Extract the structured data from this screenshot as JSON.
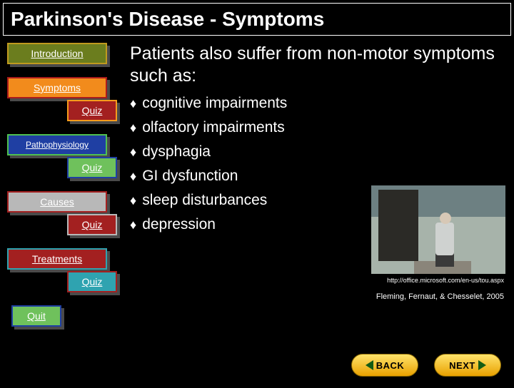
{
  "title": "Parkinson's Disease - Symptoms",
  "lead_text": "Patients also suffer from non-motor symptoms such as:",
  "bullets": [
    "cognitive impairments",
    "olfactory impairments",
    "dysphagia",
    "GI dysfunction",
    "sleep disturbances",
    "depression"
  ],
  "nav": {
    "introduction": {
      "label": "Introduction",
      "bg": "#6b7d1e",
      "border": "#c09a1e"
    },
    "symptoms": {
      "label": "Symptoms",
      "bg": "#f28b1c",
      "border": "#ab1b1b"
    },
    "quiz1": {
      "label": "Quiz",
      "bg": "#a32020",
      "border": "#f59b1c"
    },
    "patho": {
      "label": "Pathophysiology",
      "bg": "#1f3fa3",
      "border": "#50c050"
    },
    "quiz2": {
      "label": "Quiz",
      "bg": "#6fc15c",
      "border": "#1f3fa3"
    },
    "causes": {
      "label": "Causes",
      "bg": "#b8b8b8",
      "border": "#a32020"
    },
    "quiz3": {
      "label": "Quiz",
      "bg": "#a32020",
      "border": "#b8b8b8"
    },
    "treatments": {
      "label": "Treatments",
      "bg": "#a32020",
      "border": "#2fa3b0"
    },
    "quiz4": {
      "label": "Quiz",
      "bg": "#2fa3b0",
      "border": "#a32020"
    },
    "quit": {
      "label": "Quit",
      "bg": "#6fc15c",
      "border": "#1f3fa3"
    }
  },
  "image_credit": "http://office.microsoft.com/en-us/tou.aspx",
  "citation": "Fleming, Fernaut, & Chesselet, 2005",
  "pager": {
    "back": "BACK",
    "next": "NEXT"
  },
  "colors": {
    "background": "#000000",
    "text": "#ffffff",
    "shadow": "#4a4a4a",
    "pager_gradient_top": "#ffe36b",
    "pager_gradient_bottom": "#e9a100",
    "pager_arrow": "#145c14"
  }
}
